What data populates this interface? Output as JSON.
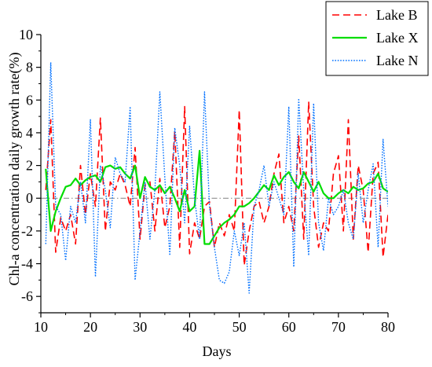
{
  "chart_data": {
    "type": "line",
    "xlabel": "Days",
    "ylabel": "Chl-a concentration daily growth rate(%)",
    "xlim": [
      10,
      80
    ],
    "ylim": [
      -7,
      10
    ],
    "xticks": [
      10,
      20,
      30,
      40,
      50,
      60,
      70,
      80
    ],
    "yticks": [
      -6,
      -4,
      -2,
      0,
      2,
      4,
      6,
      8,
      10
    ],
    "reference_line": {
      "y": 0,
      "style": "dash-dot",
      "color": "#808080"
    },
    "grid": false,
    "legend_position": "top-right",
    "series": [
      {
        "name": "Lake B",
        "color": "#ff0000",
        "style": "dashed",
        "x": [
          11,
          12,
          13,
          14,
          15,
          16,
          17,
          18,
          19,
          20,
          21,
          22,
          23,
          24,
          25,
          26,
          27,
          28,
          29,
          30,
          31,
          32,
          33,
          34,
          35,
          36,
          37,
          38,
          39,
          40,
          41,
          42,
          43,
          44,
          45,
          46,
          47,
          48,
          49,
          50,
          51,
          52,
          53,
          54,
          55,
          56,
          57,
          58,
          59,
          60,
          61,
          62,
          63,
          64,
          65,
          66,
          67,
          68,
          69,
          70,
          71,
          72,
          73,
          74,
          75,
          76,
          77,
          78,
          79,
          80
        ],
        "y": [
          0.5,
          4.8,
          -3.3,
          -1.2,
          -2.0,
          -1.0,
          -2.8,
          2.0,
          -1.0,
          1.5,
          -0.5,
          4.9,
          -2.0,
          1.0,
          0.5,
          1.5,
          0.8,
          -0.5,
          3.1,
          -2.5,
          0.8,
          1.0,
          -2.0,
          1.2,
          -1.8,
          -0.5,
          4.1,
          -3.0,
          5.6,
          -3.4,
          -1.5,
          -2.5,
          -0.5,
          -0.2,
          -3.0,
          -1.5,
          -2.3,
          -1.0,
          -2.0,
          5.4,
          -4.1,
          -2.0,
          -0.5,
          -0.2,
          -1.5,
          -0.5,
          1.5,
          2.7,
          -1.5,
          -0.5,
          -2.0,
          3.8,
          -2.5,
          5.9,
          -0.5,
          -3.0,
          -1.5,
          -2.0,
          1.5,
          2.6,
          -2.0,
          4.8,
          -2.5,
          2.0,
          0.5,
          -3.3,
          1.5,
          2.2,
          -3.6,
          -1.0
        ]
      },
      {
        "name": "Lake X",
        "color": "#00dd00",
        "style": "solid",
        "x": [
          11,
          12,
          13,
          14,
          15,
          16,
          17,
          18,
          19,
          20,
          21,
          22,
          23,
          24,
          25,
          26,
          27,
          28,
          29,
          30,
          31,
          32,
          33,
          34,
          35,
          36,
          37,
          38,
          39,
          40,
          41,
          42,
          43,
          44,
          45,
          46,
          47,
          48,
          49,
          50,
          51,
          52,
          53,
          54,
          55,
          56,
          57,
          58,
          59,
          60,
          61,
          62,
          63,
          64,
          65,
          66,
          67,
          68,
          69,
          70,
          71,
          72,
          73,
          74,
          75,
          76,
          77,
          78,
          79,
          80
        ],
        "y": [
          1.8,
          -2.0,
          -0.8,
          0.0,
          0.7,
          0.8,
          1.2,
          0.8,
          1.1,
          1.3,
          1.4,
          1.0,
          1.9,
          2.0,
          1.8,
          1.9,
          1.5,
          1.2,
          2.0,
          0.0,
          1.3,
          0.7,
          0.5,
          0.8,
          0.3,
          0.7,
          0.0,
          -0.8,
          0.5,
          -0.8,
          -0.5,
          2.9,
          -2.8,
          -2.8,
          -2.3,
          -1.8,
          -1.5,
          -1.3,
          -1.0,
          -0.5,
          -0.5,
          -0.3,
          0.0,
          0.4,
          0.8,
          0.5,
          1.4,
          0.8,
          1.3,
          1.6,
          1.0,
          0.6,
          1.6,
          1.0,
          0.4,
          1.0,
          0.3,
          0.0,
          0.0,
          0.3,
          0.5,
          0.3,
          0.7,
          0.5,
          0.6,
          0.9,
          1.0,
          1.5,
          0.6,
          0.4
        ]
      },
      {
        "name": "Lake N",
        "color": "#0070ff",
        "style": "dotted",
        "x": [
          11,
          12,
          13,
          14,
          15,
          16,
          17,
          18,
          19,
          20,
          21,
          22,
          23,
          24,
          25,
          26,
          27,
          28,
          29,
          30,
          31,
          32,
          33,
          34,
          35,
          36,
          37,
          38,
          39,
          40,
          41,
          42,
          43,
          44,
          45,
          46,
          47,
          48,
          49,
          50,
          51,
          52,
          53,
          54,
          55,
          56,
          57,
          58,
          59,
          60,
          61,
          62,
          63,
          64,
          65,
          66,
          67,
          68,
          69,
          70,
          71,
          72,
          73,
          74,
          75,
          76,
          77,
          78,
          79,
          80
        ],
        "y": [
          -2.8,
          8.3,
          -0.5,
          -1.0,
          -3.8,
          -0.5,
          -1.5,
          1.0,
          -1.5,
          4.8,
          -4.8,
          2.0,
          0.5,
          -1.8,
          2.5,
          1.5,
          1.0,
          5.6,
          -5.0,
          -2.0,
          1.0,
          -2.5,
          0.5,
          6.5,
          1.2,
          -3.5,
          4.3,
          2.0,
          -1.5,
          4.4,
          0.0,
          -2.5,
          6.5,
          -0.5,
          -3.0,
          -5.0,
          -5.2,
          -4.5,
          -2.0,
          -3.5,
          -1.5,
          -5.8,
          -0.5,
          0.5,
          2.0,
          -0.5,
          1.0,
          0.0,
          -1.0,
          5.6,
          -4.2,
          6.1,
          0.5,
          -3.5,
          5.8,
          -1.5,
          -3.2,
          0.0,
          -1.0,
          -0.5,
          0.5,
          -1.5,
          -2.5,
          1.5,
          -1.5,
          0.5,
          2.1,
          -3.0,
          3.6,
          -0.5
        ]
      }
    ]
  }
}
